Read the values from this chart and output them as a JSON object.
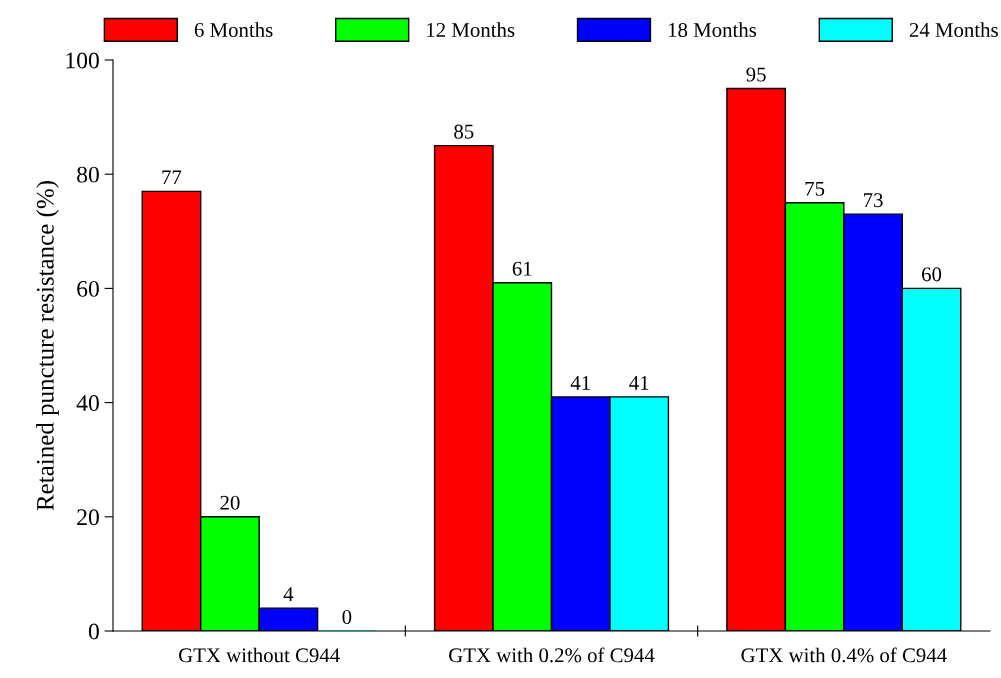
{
  "chart_data": {
    "type": "bar",
    "ylabel": "Retained puncture resistance (%)",
    "categories": [
      "GTX without C944",
      "GTX with 0.2% of C944",
      "GTX with 0.4% of C944"
    ],
    "series": [
      {
        "name": "6 Months",
        "color": "#ff0000",
        "values": [
          77,
          85,
          95
        ]
      },
      {
        "name": "12 Months",
        "color": "#00ff00",
        "values": [
          20,
          61,
          75
        ]
      },
      {
        "name": "18 Months",
        "color": "#0000ff",
        "values": [
          4,
          41,
          73
        ]
      },
      {
        "name": "24 Months",
        "color": "#00ffff",
        "values": [
          0,
          41,
          60
        ]
      }
    ],
    "ylim": [
      0,
      100
    ],
    "yticks": [
      0,
      20,
      40,
      60,
      80,
      100
    ],
    "data_labels": true,
    "legend": "top",
    "grid": false
  }
}
